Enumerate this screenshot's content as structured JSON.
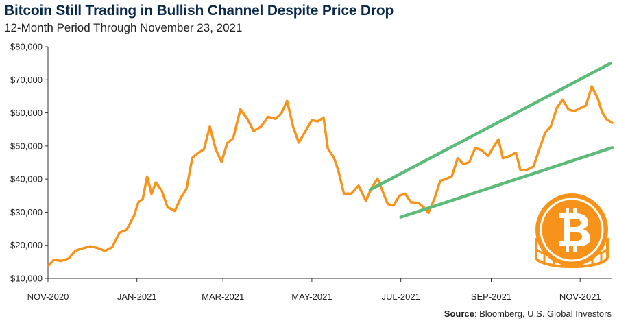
{
  "chart_data": {
    "type": "line",
    "title": "Bitcoin Still Trading in Bullish Channel Despite Price Drop",
    "subtitle": "12-Month Period Through November 23, 2021",
    "source_label": "Source",
    "source_text": ": Bloomberg, U.S. Global Investors",
    "y_tick_labels": [
      "$80,000",
      "$70,000",
      "$60,000",
      "$50,000",
      "$40,000",
      "$30,000",
      "$20,000",
      "$10,000"
    ],
    "x_tick_labels": [
      "NOV-2020",
      "JAN-2021",
      "MAR-2021",
      "MAY-2021",
      "JUL-2021",
      "SEP-2021",
      "NOV-2021"
    ],
    "ylim": [
      10000,
      80000
    ],
    "xlim": [
      "2020-11-01",
      "2021-11-23"
    ],
    "x_ticks": [
      "2020-11-01",
      "2021-01-01",
      "2021-03-01",
      "2021-05-01",
      "2021-07-01",
      "2021-09-01",
      "2021-11-01"
    ],
    "grid": false,
    "colors": {
      "series": "#f7931a",
      "channel": "#5dbb7a",
      "axis": "#333333"
    },
    "series": [
      {
        "x": [
          "2020-11-01",
          "2020-11-05",
          "2020-11-10",
          "2020-11-15",
          "2020-11-20",
          "2020-11-25",
          "2020-11-30",
          "2020-12-05",
          "2020-12-10",
          "2020-12-15",
          "2020-12-20",
          "2020-12-25",
          "2020-12-30",
          "2021-01-02",
          "2021-01-05",
          "2021-01-08",
          "2021-01-11",
          "2021-01-14",
          "2021-01-18",
          "2021-01-22",
          "2021-01-27",
          "2021-01-31",
          "2021-02-04",
          "2021-02-08",
          "2021-02-12",
          "2021-02-16",
          "2021-02-20",
          "2021-02-24",
          "2021-02-28",
          "2021-03-04",
          "2021-03-08",
          "2021-03-13",
          "2021-03-18",
          "2021-03-22",
          "2021-03-27",
          "2021-04-01",
          "2021-04-06",
          "2021-04-10",
          "2021-04-14",
          "2021-04-18",
          "2021-04-22",
          "2021-04-26",
          "2021-05-01",
          "2021-05-05",
          "2021-05-09",
          "2021-05-12",
          "2021-05-16",
          "2021-05-19",
          "2021-05-23",
          "2021-05-28",
          "2021-06-02",
          "2021-06-07",
          "2021-06-11",
          "2021-06-15",
          "2021-06-19",
          "2021-06-22",
          "2021-06-26",
          "2021-06-30",
          "2021-07-04",
          "2021-07-08",
          "2021-07-13",
          "2021-07-17",
          "2021-07-20",
          "2021-07-24",
          "2021-07-28",
          "2021-08-01",
          "2021-08-05",
          "2021-08-09",
          "2021-08-13",
          "2021-08-17",
          "2021-08-21",
          "2021-08-25",
          "2021-08-30",
          "2021-09-03",
          "2021-09-06",
          "2021-09-09",
          "2021-09-14",
          "2021-09-18",
          "2021-09-21",
          "2021-09-25",
          "2021-09-30",
          "2021-10-04",
          "2021-10-08",
          "2021-10-12",
          "2021-10-16",
          "2021-10-20",
          "2021-10-24",
          "2021-10-28",
          "2021-11-01",
          "2021-11-05",
          "2021-11-09",
          "2021-11-13",
          "2021-11-16",
          "2021-11-19",
          "2021-11-23"
        ],
        "y": [
          13700,
          15600,
          15300,
          16000,
          18400,
          19100,
          19700,
          19200,
          18300,
          19400,
          23800,
          24700,
          28900,
          33000,
          34000,
          40800,
          35500,
          39000,
          36500,
          31500,
          30400,
          34300,
          37000,
          46400,
          47900,
          49000,
          55900,
          49000,
          45200,
          50900,
          52300,
          61100,
          58000,
          54500,
          55800,
          58800,
          58200,
          59800,
          63600,
          56000,
          51000,
          54000,
          57800,
          57400,
          58600,
          49200,
          46600,
          42800,
          35600,
          35600,
          38000,
          33500,
          37300,
          40200,
          35800,
          32500,
          32000,
          35000,
          35600,
          33000,
          32800,
          31400,
          29800,
          34000,
          39500,
          40000,
          40900,
          46300,
          44500,
          45100,
          49400,
          48800,
          47000,
          50000,
          52000,
          46300,
          47000,
          48000,
          42800,
          42700,
          43800,
          49000,
          54000,
          56000,
          61500,
          64000,
          61000,
          60500,
          61400,
          62200,
          68000,
          64500,
          60300,
          58100,
          57000
        ],
        "values_note": ""
      }
    ],
    "channel_lines": [
      {
        "from": [
          "2021-06-10",
          36800
        ],
        "to": [
          "2021-11-22",
          75000
        ]
      },
      {
        "from": [
          "2021-07-01",
          28500
        ],
        "to": [
          "2021-11-23",
          49500
        ]
      }
    ]
  }
}
